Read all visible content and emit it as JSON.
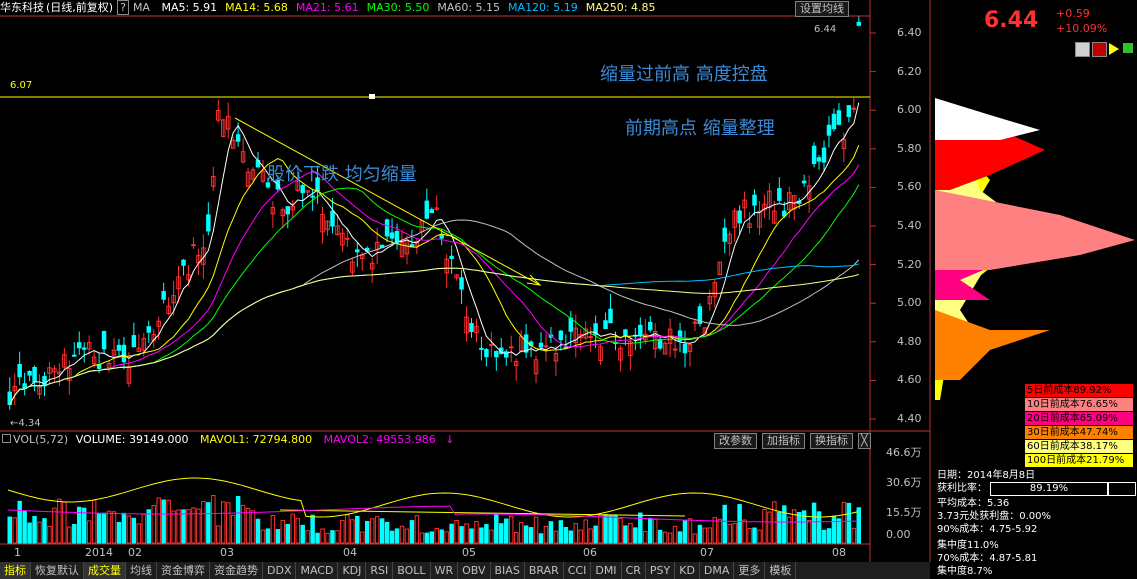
{
  "header": {
    "stock_name": "华东科技",
    "mode": "(日线,前复权)",
    "help_icon": "?",
    "ma_label": "MA",
    "ma_items": [
      {
        "text": "MA5: 5.91",
        "color": "#ffffff"
      },
      {
        "text": "MA14: 5.68",
        "color": "#ffff00"
      },
      {
        "text": "MA21: 5.61",
        "color": "#ff00ff"
      },
      {
        "text": "MA30: 5.50",
        "color": "#00ff00"
      },
      {
        "text": "MA60: 5.15",
        "color": "#c0c0c0"
      },
      {
        "text": "MA120: 5.19",
        "color": "#00bfff"
      },
      {
        "text": "MA250: 4.85",
        "color": "#ffff80"
      }
    ],
    "settings_button": "设置均线"
  },
  "price_axis": {
    "ticks": [
      "6.40",
      "6.20",
      "6.00",
      "5.80",
      "5.60",
      "5.40",
      "5.20",
      "5.00",
      "4.80",
      "4.60",
      "4.40"
    ],
    "high_label": "6.44",
    "low_label": "4.34",
    "ref_line_label": "6.07"
  },
  "annotations": {
    "a1": "缩量过前高   高度控盘",
    "a2": "前期高点  缩量整理",
    "a3": "股价下跌   均匀缩量"
  },
  "volume": {
    "label": "VOL(5,72)",
    "volume_text": "VOLUME: 39149.000",
    "mavol1": "MAVOL1: 72794.800",
    "mavol2": "MAVOL2: 49553.986",
    "arrow": "↓",
    "buttons": [
      "改参数",
      "加指标",
      "换指标",
      "╳"
    ],
    "ticks": [
      "46.6万",
      "30.6万",
      "15.5万",
      "0.00"
    ]
  },
  "time_axis": [
    "1",
    "2014",
    "02",
    "03",
    "04",
    "05",
    "06",
    "07",
    "08"
  ],
  "bottom_tabs": [
    "指标",
    "恢复默认",
    "成交量",
    "均线",
    "资金博弈",
    "资金趋势",
    "DDX",
    "MACD",
    "KDJ",
    "RSI",
    "BOLL",
    "WR",
    "OBV",
    "BIAS",
    "BRAR",
    "CCI",
    "DMI",
    "CR",
    "PSY",
    "KD",
    "DMA",
    "更多",
    "模板"
  ],
  "quote": {
    "price": "6.44",
    "change": "+0.59",
    "change_pct": "+10.09%"
  },
  "cost_table": [
    {
      "text": "5日前成本89.92%",
      "bg": "#ff0000"
    },
    {
      "text": "10日前成本76.65%",
      "bg": "#ff8080"
    },
    {
      "text": "20日前成本65.09%",
      "bg": "#ff0080"
    },
    {
      "text": "30日前成本47.74%",
      "bg": "#ff8000"
    },
    {
      "text": "60日前成本38.17%",
      "bg": "#ffff80"
    },
    {
      "text": "100日前成本21.79%",
      "bg": "#ffff00"
    }
  ],
  "info": {
    "date": "日期：2014年8月8日",
    "profit_label": "获利比率：",
    "profit_value": "89.19%",
    "avg_cost": "平均成本：5.36",
    "profit_at": "3.73元处获利盘：0.00%",
    "cost90": "90%成本：4.75-5.92",
    "conc1": "集中度11.0%",
    "cost70": "70%成本：4.87-5.81",
    "conc2": "集中度8.7%"
  },
  "colors": {
    "up": "#ff3030",
    "down": "#00ffff",
    "axis": "#c03030",
    "ma5": "#ffffff",
    "ma14": "#ffff00",
    "ma21": "#ff00ff",
    "ma30": "#00ff00",
    "ma60": "#c0c0c0",
    "ma120": "#00bfff",
    "ma250": "#ffff80"
  }
}
